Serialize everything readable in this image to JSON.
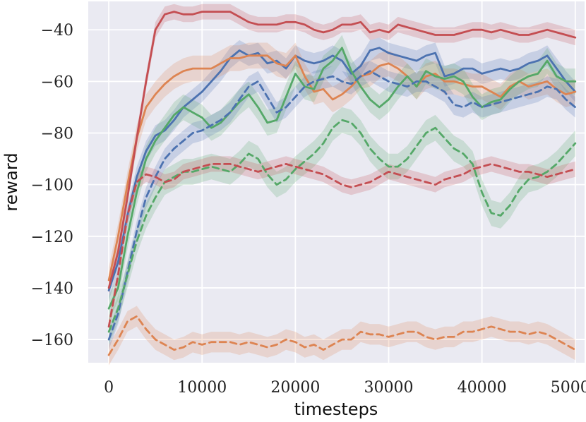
{
  "chart_data": {
    "type": "line",
    "title": "",
    "xlabel": "timesteps",
    "ylabel": "reward",
    "xlim": [
      -2200,
      51000
    ],
    "ylim": [
      -169,
      -29
    ],
    "xticks": [
      0,
      10000,
      20000,
      30000,
      40000,
      50000
    ],
    "yticks": [
      -40,
      -60,
      -80,
      -100,
      -120,
      -140,
      -160
    ],
    "xtick_labels": [
      "0",
      "10000",
      "20000",
      "30000",
      "40000",
      "50000"
    ],
    "ytick_labels": [
      "−40",
      "−60",
      "−80",
      "−100",
      "−120",
      "−140",
      "−160"
    ],
    "grid": true,
    "background": "#eaeaf2",
    "series": [
      {
        "color": "#4c72b0",
        "dash": false,
        "band": 4,
        "x": [
          0,
          1000,
          2000,
          3000,
          4000,
          5000,
          6000,
          7000,
          8000,
          9000,
          10000,
          11000,
          12000,
          13000,
          14000,
          15000,
          16000,
          17000,
          18000,
          19000,
          20000,
          21000,
          22000,
          23000,
          24000,
          25000,
          26000,
          27000,
          28000,
          29000,
          30000,
          31000,
          32000,
          33000,
          34000,
          35000,
          36000,
          37000,
          38000,
          39000,
          40000,
          41000,
          42000,
          43000,
          44000,
          45000,
          46000,
          47000,
          48000,
          49000,
          50000
        ],
        "y": [
          -141,
          -130,
          -112,
          -97,
          -87,
          -81,
          -79,
          -75,
          -70,
          -67,
          -64,
          -60,
          -56,
          -51,
          -48,
          -50,
          -49,
          -53,
          -52,
          -55,
          -50,
          -52,
          -53,
          -52,
          -50,
          -52,
          -57,
          -54,
          -48,
          -47,
          -49,
          -50,
          -51,
          -52,
          -50,
          -49,
          -58,
          -57,
          -55,
          -55,
          -57,
          -56,
          -55,
          -56,
          -55,
          -53,
          -52,
          -50,
          -55,
          -60,
          -64
        ]
      },
      {
        "color": "#dd8452",
        "dash": false,
        "band": 5,
        "x": [
          0,
          1000,
          2000,
          3000,
          4000,
          5000,
          6000,
          7000,
          8000,
          9000,
          10000,
          11000,
          12000,
          13000,
          14000,
          15000,
          16000,
          17000,
          18000,
          19000,
          20000,
          21000,
          22000,
          23000,
          24000,
          25000,
          26000,
          27000,
          28000,
          29000,
          30000,
          31000,
          32000,
          33000,
          34000,
          35000,
          36000,
          37000,
          38000,
          39000,
          40000,
          41000,
          42000,
          43000,
          44000,
          45000,
          46000,
          47000,
          48000,
          49000,
          50000
        ],
        "y": [
          -137,
          -120,
          -100,
          -82,
          -70,
          -65,
          -61,
          -58,
          -56,
          -55,
          -55,
          -55,
          -53,
          -51,
          -51,
          -50,
          -50,
          -50,
          -53,
          -54,
          -50,
          -58,
          -64,
          -63,
          -67,
          -65,
          -62,
          -58,
          -57,
          -54,
          -53,
          -55,
          -58,
          -62,
          -58,
          -57,
          -60,
          -60,
          -61,
          -62,
          -62,
          -64,
          -66,
          -62,
          -60,
          -62,
          -61,
          -60,
          -63,
          -65,
          -64
        ]
      },
      {
        "color": "#55a868",
        "dash": false,
        "band": 5,
        "x": [
          0,
          1000,
          2000,
          3000,
          4000,
          5000,
          6000,
          7000,
          8000,
          9000,
          10000,
          11000,
          12000,
          13000,
          14000,
          15000,
          16000,
          17000,
          18000,
          19000,
          20000,
          21000,
          22000,
          23000,
          24000,
          25000,
          26000,
          27000,
          28000,
          29000,
          30000,
          31000,
          32000,
          33000,
          34000,
          35000,
          36000,
          37000,
          38000,
          39000,
          40000,
          41000,
          42000,
          43000,
          44000,
          45000,
          46000,
          47000,
          48000,
          49000,
          50000
        ],
        "y": [
          -148,
          -140,
          -120,
          -103,
          -90,
          -83,
          -78,
          -73,
          -70,
          -72,
          -74,
          -78,
          -76,
          -72,
          -68,
          -65,
          -70,
          -76,
          -75,
          -66,
          -57,
          -62,
          -63,
          -55,
          -52,
          -47,
          -56,
          -62,
          -67,
          -70,
          -67,
          -62,
          -58,
          -62,
          -56,
          -58,
          -59,
          -58,
          -60,
          -66,
          -70,
          -68,
          -67,
          -63,
          -60,
          -58,
          -57,
          -52,
          -58,
          -60,
          -60
        ]
      },
      {
        "color": "#c44e52",
        "dash": false,
        "band": 3,
        "x": [
          0,
          1000,
          2000,
          3000,
          4000,
          5000,
          6000,
          7000,
          8000,
          9000,
          10000,
          11000,
          12000,
          13000,
          14000,
          15000,
          16000,
          17000,
          18000,
          19000,
          20000,
          21000,
          22000,
          23000,
          24000,
          25000,
          26000,
          27000,
          28000,
          29000,
          30000,
          31000,
          32000,
          33000,
          34000,
          35000,
          36000,
          37000,
          38000,
          39000,
          40000,
          41000,
          42000,
          43000,
          44000,
          45000,
          46000,
          47000,
          48000,
          49000,
          50000
        ],
        "y": [
          -140,
          -126,
          -105,
          -82,
          -60,
          -40,
          -34,
          -33,
          -34,
          -34,
          -33,
          -33,
          -33,
          -33,
          -35,
          -37,
          -38,
          -38,
          -38,
          -37,
          -37,
          -38,
          -40,
          -41,
          -40,
          -38,
          -38,
          -37,
          -41,
          -40,
          -41,
          -38,
          -39,
          -40,
          -41,
          -42,
          -42,
          -42,
          -41,
          -40,
          -40,
          -41,
          -40,
          -41,
          -42,
          -42,
          -41,
          -40,
          -41,
          -42,
          -43
        ]
      },
      {
        "color": "#4c72b0",
        "dash": true,
        "band": 4,
        "x": [
          0,
          1000,
          2000,
          3000,
          4000,
          5000,
          6000,
          7000,
          8000,
          9000,
          10000,
          11000,
          12000,
          13000,
          14000,
          15000,
          16000,
          17000,
          18000,
          19000,
          20000,
          21000,
          22000,
          23000,
          24000,
          25000,
          26000,
          27000,
          28000,
          29000,
          30000,
          31000,
          32000,
          33000,
          34000,
          35000,
          36000,
          37000,
          38000,
          39000,
          40000,
          41000,
          42000,
          43000,
          44000,
          45000,
          46000,
          47000,
          48000,
          49000,
          50000
        ],
        "y": [
          -160,
          -150,
          -134,
          -118,
          -105,
          -97,
          -90,
          -86,
          -83,
          -80,
          -79,
          -77,
          -75,
          -72,
          -67,
          -62,
          -60,
          -66,
          -72,
          -70,
          -66,
          -62,
          -60,
          -59,
          -58,
          -60,
          -61,
          -58,
          -56,
          -58,
          -60,
          -61,
          -62,
          -60,
          -60,
          -62,
          -64,
          -69,
          -70,
          -68,
          -70,
          -69,
          -68,
          -67,
          -66,
          -65,
          -64,
          -62,
          -63,
          -67,
          -70
        ]
      },
      {
        "color": "#dd8452",
        "dash": true,
        "band": 4,
        "x": [
          0,
          1000,
          2000,
          3000,
          4000,
          5000,
          6000,
          7000,
          8000,
          9000,
          10000,
          11000,
          12000,
          13000,
          14000,
          15000,
          16000,
          17000,
          18000,
          19000,
          20000,
          21000,
          22000,
          23000,
          24000,
          25000,
          26000,
          27000,
          28000,
          29000,
          30000,
          31000,
          32000,
          33000,
          34000,
          35000,
          36000,
          37000,
          38000,
          39000,
          40000,
          41000,
          42000,
          43000,
          44000,
          45000,
          46000,
          47000,
          48000,
          49000,
          50000
        ],
        "y": [
          -166,
          -160,
          -153,
          -151,
          -156,
          -160,
          -162,
          -164,
          -163,
          -161,
          -162,
          -161,
          -161,
          -161,
          -162,
          -161,
          -162,
          -163,
          -162,
          -160,
          -161,
          -163,
          -162,
          -164,
          -162,
          -160,
          -160,
          -157,
          -158,
          -158,
          -159,
          -158,
          -157,
          -157,
          -159,
          -160,
          -159,
          -159,
          -157,
          -157,
          -156,
          -155,
          -156,
          -157,
          -157,
          -158,
          -157,
          -158,
          -160,
          -162,
          -164
        ]
      },
      {
        "color": "#55a868",
        "dash": true,
        "band": 5,
        "x": [
          0,
          1000,
          2000,
          3000,
          4000,
          5000,
          6000,
          7000,
          8000,
          9000,
          10000,
          11000,
          12000,
          13000,
          14000,
          15000,
          16000,
          17000,
          18000,
          19000,
          20000,
          21000,
          22000,
          23000,
          24000,
          25000,
          26000,
          27000,
          28000,
          29000,
          30000,
          31000,
          32000,
          33000,
          34000,
          35000,
          36000,
          37000,
          38000,
          39000,
          40000,
          41000,
          42000,
          43000,
          44000,
          45000,
          46000,
          47000,
          48000,
          49000,
          50000
        ],
        "y": [
          -157,
          -148,
          -135,
          -122,
          -112,
          -105,
          -99,
          -97,
          -95,
          -95,
          -94,
          -93,
          -94,
          -95,
          -92,
          -88,
          -90,
          -96,
          -100,
          -98,
          -94,
          -91,
          -88,
          -84,
          -78,
          -75,
          -76,
          -80,
          -86,
          -90,
          -93,
          -93,
          -90,
          -85,
          -80,
          -78,
          -82,
          -86,
          -88,
          -92,
          -103,
          -111,
          -112,
          -108,
          -102,
          -98,
          -97,
          -95,
          -92,
          -88,
          -84
        ]
      },
      {
        "color": "#c44e52",
        "dash": true,
        "band": 3,
        "x": [
          0,
          1000,
          2000,
          3000,
          4000,
          5000,
          6000,
          7000,
          8000,
          9000,
          10000,
          11000,
          12000,
          13000,
          14000,
          15000,
          16000,
          17000,
          18000,
          19000,
          20000,
          21000,
          22000,
          23000,
          24000,
          25000,
          26000,
          27000,
          28000,
          29000,
          30000,
          31000,
          32000,
          33000,
          34000,
          35000,
          36000,
          37000,
          38000,
          39000,
          40000,
          41000,
          42000,
          43000,
          44000,
          45000,
          46000,
          47000,
          48000,
          49000,
          50000
        ],
        "y": [
          -155,
          -135,
          -112,
          -99,
          -96,
          -97,
          -99,
          -98,
          -95,
          -94,
          -93,
          -92,
          -92,
          -92,
          -93,
          -94,
          -95,
          -94,
          -93,
          -92,
          -93,
          -94,
          -95,
          -96,
          -98,
          -100,
          -101,
          -100,
          -99,
          -97,
          -95,
          -96,
          -97,
          -98,
          -99,
          -100,
          -98,
          -97,
          -96,
          -94,
          -93,
          -92,
          -93,
          -94,
          -95,
          -95,
          -96,
          -97,
          -96,
          -95,
          -94
        ]
      }
    ]
  }
}
